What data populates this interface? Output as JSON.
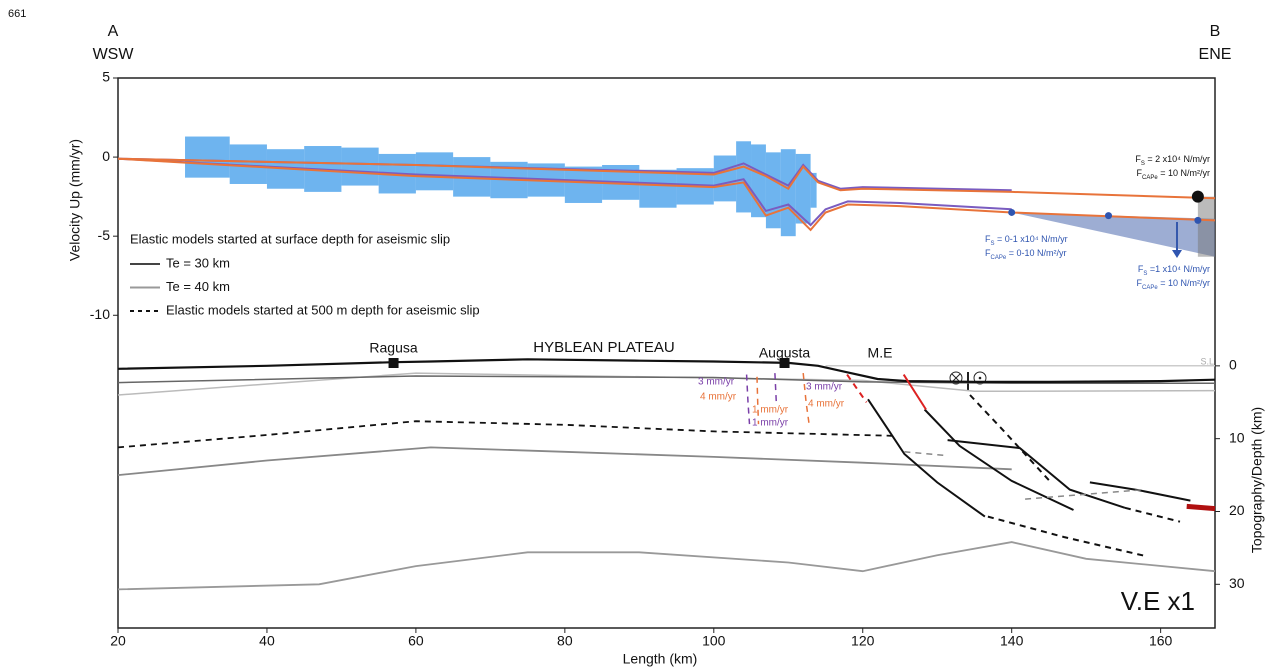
{
  "figure_number": "661",
  "profile_ends": {
    "left_letter": "A",
    "left_dir": "WSW",
    "right_letter": "B",
    "right_dir": "ENE"
  },
  "chart_data": [
    {
      "type": "line",
      "ylabel": "Velocity Up (mm/yr)",
      "xlim": [
        20,
        167.3
      ],
      "ylim": [
        -11.5,
        5
      ],
      "yticks": [
        5,
        0,
        -5,
        -10
      ],
      "band": {
        "color": "#3d9be9",
        "x": [
          29,
          35,
          40,
          45,
          50,
          55,
          60,
          65,
          70,
          75,
          80,
          85,
          90,
          95,
          100,
          103,
          105,
          107,
          109,
          111,
          113
        ],
        "high": [
          1.3,
          0.8,
          0.5,
          0.7,
          0.6,
          0.2,
          0.3,
          0.0,
          -0.3,
          -0.4,
          -0.6,
          -0.5,
          -0.8,
          -0.7,
          0.1,
          1.0,
          0.8,
          0.3,
          0.5,
          0.2,
          -1.0
        ],
        "low": [
          -1.3,
          -1.7,
          -2.0,
          -2.2,
          -1.8,
          -2.3,
          -2.1,
          -2.5,
          -2.6,
          -2.5,
          -2.9,
          -2.7,
          -3.2,
          -3.0,
          -2.8,
          -3.5,
          -3.8,
          -4.5,
          -5.0,
          -4.2,
          -3.2
        ]
      },
      "series": [
        {
          "color": "#7a5cc0",
          "x": [
            20,
            60,
            100,
            104,
            107,
            110,
            112,
            114,
            117,
            120,
            140
          ],
          "values": [
            -0.1,
            -0.5,
            -1.0,
            -0.4,
            -1.1,
            -1.8,
            -0.5,
            -1.5,
            -2.0,
            -1.9,
            -2.1
          ]
        },
        {
          "color": "#7a5cc0",
          "x": [
            20,
            60,
            100,
            104,
            107,
            110,
            113,
            115,
            118,
            125,
            140
          ],
          "values": [
            -0.1,
            -1.1,
            -1.8,
            -1.4,
            -3.4,
            -3.0,
            -4.3,
            -3.3,
            -2.8,
            -2.9,
            -3.3
          ]
        },
        {
          "color": "#e8733a",
          "x": [
            20,
            60,
            100,
            104,
            107,
            110,
            112,
            114,
            117,
            120,
            140,
            167.3
          ],
          "values": [
            -0.1,
            -0.5,
            -1.1,
            -0.6,
            -1.2,
            -2.0,
            -0.6,
            -1.6,
            -2.1,
            -2.0,
            -2.2,
            -2.6
          ]
        },
        {
          "color": "#e8733a",
          "x": [
            20,
            60,
            100,
            104,
            107,
            110,
            113,
            115,
            118,
            125,
            140,
            167.3
          ],
          "values": [
            -0.1,
            -1.2,
            -1.9,
            -1.6,
            -3.7,
            -3.2,
            -4.6,
            -3.5,
            -3.0,
            -3.1,
            -3.5,
            -4.0
          ]
        }
      ],
      "shaded": [
        {
          "color": "#3b5ba8",
          "x": [
            140,
            167.3,
            167.3
          ],
          "y": [
            -3.5,
            -3.9,
            -6.3
          ]
        },
        {
          "color": "#777777",
          "x": [
            165,
            167.3,
            167.3,
            165
          ],
          "y": [
            -2.5,
            -2.5,
            -6.3,
            -6.3
          ]
        }
      ],
      "points": [
        {
          "x": 165,
          "y": -2.5,
          "color": "#111111"
        },
        {
          "x": 140,
          "y": -3.5,
          "color": "#2f55b0"
        },
        {
          "x": 153,
          "y": -3.7,
          "color": "#2f55b0"
        },
        {
          "x": 165,
          "y": -4.0,
          "color": "#2f55b0"
        }
      ],
      "legend": {
        "title": "Elastic models started at surface depth for aseismic slip",
        "items": [
          {
            "name": "Te = 30 km",
            "color": "#444444",
            "dash": false
          },
          {
            "name": "Te = 40 km",
            "color": "#999999",
            "dash": false
          },
          {
            "name": "Elastic models started at 500 m depth for aseismic slip",
            "color": "#111111",
            "dash": true
          }
        ]
      },
      "annotations": [
        {
          "color": "#111111",
          "lines": [
            {
              "symbol": "F",
              "sub": "S",
              "text": " = 2 x10⁴ N/m/yr"
            },
            {
              "symbol": "F",
              "sub": "CAPe",
              "text": " = 10 N/m²/yr"
            }
          ]
        },
        {
          "color": "#2f55b0",
          "lines": [
            {
              "symbol": "F",
              "sub": "S",
              "text": " = 0-1 x10⁴ N/m/yr"
            },
            {
              "symbol": "F",
              "sub": "CAPe",
              "text": " = 0-10 N/m²/yr"
            }
          ]
        },
        {
          "color": "#2f55b0",
          "lines": [
            {
              "symbol": "F",
              "sub": "S",
              "text": " =1 x10⁴ N/m/yr"
            },
            {
              "symbol": "F",
              "sub": "CAPe",
              "text": " = 10 N/m²/yr"
            }
          ]
        }
      ]
    },
    {
      "type": "cross-section",
      "xlabel": "Length (km)",
      "y2label": "Topography/Depth (km)",
      "xlim": [
        20,
        167.3
      ],
      "xticks": [
        20,
        40,
        60,
        80,
        100,
        120,
        140,
        160
      ],
      "y2lim": [
        -3,
        36
      ],
      "y2ticks": [
        0,
        10,
        20,
        30
      ],
      "series": [
        {
          "color": "#cccccc",
          "width": 1.5,
          "dash": false,
          "x": [
            115,
            167.3
          ],
          "y": [
            0,
            0
          ]
        },
        {
          "color": "#bbbbbb",
          "width": 1.5,
          "dash": false,
          "x": [
            20,
            60,
            120,
            135,
            140,
            167.3
          ],
          "y": [
            4.0,
            1.0,
            2.0,
            3.5,
            3.5,
            3.4
          ]
        },
        {
          "color": "#666666",
          "width": 1.5,
          "dash": false,
          "x": [
            20,
            60,
            100,
            120,
            140,
            167.3
          ],
          "y": [
            2.3,
            1.4,
            1.6,
            2.2,
            2.4,
            2.4
          ]
        },
        {
          "color": "#111111",
          "width": 2.2,
          "dash": false,
          "x": [
            20,
            40,
            57,
            62,
            75,
            90,
            100,
            110,
            114,
            118,
            122,
            126,
            135,
            145,
            160,
            167.3
          ],
          "y": [
            0.4,
            0.0,
            -0.5,
            -0.6,
            -0.9,
            -0.7,
            -0.6,
            -0.4,
            0.0,
            0.9,
            1.8,
            2.1,
            2.2,
            2.2,
            2.1,
            1.9
          ]
        },
        {
          "color": "#111111",
          "width": 1.8,
          "dash": true,
          "x": [
            20,
            40,
            60,
            80,
            100,
            124
          ],
          "y": [
            11.2,
            9.5,
            7.6,
            8.1,
            9.0,
            9.6
          ]
        },
        {
          "color": "#888888",
          "width": 1.8,
          "dash": false,
          "x": [
            20,
            40,
            62,
            80,
            100,
            120,
            140
          ],
          "y": [
            15.0,
            13.0,
            11.2,
            11.8,
            12.5,
            13.3,
            14.2
          ]
        },
        {
          "color": "#999999",
          "width": 1.8,
          "dash": false,
          "x": [
            20,
            47,
            60,
            75,
            90,
            110,
            120,
            130,
            140,
            150,
            167.3
          ],
          "y": [
            30.7,
            30.0,
            27.5,
            25.6,
            25.6,
            27.0,
            28.2,
            26.0,
            24.2,
            26.5,
            28.2
          ]
        },
        {
          "color": "#111111",
          "width": 2,
          "dash": false,
          "x": [
            120.7,
            125.6,
            130,
            136.4
          ],
          "y": [
            4.6,
            12.1,
            16,
            20.7
          ]
        },
        {
          "color": "#111111",
          "width": 2,
          "dash": true,
          "x": [
            136.8,
            147,
            157.9
          ],
          "y": [
            20.7,
            23.5,
            26.1
          ]
        },
        {
          "color": "#111111",
          "width": 2,
          "dash": false,
          "x": [
            128.3,
            133,
            140,
            148.3
          ],
          "y": [
            6.0,
            11.0,
            15.8,
            19.8
          ]
        },
        {
          "color": "#111111",
          "width": 2,
          "dash": false,
          "x": [
            131.4,
            141.1,
            147.8,
            155.2
          ],
          "y": [
            10.2,
            11.3,
            17.0,
            19.5
          ]
        },
        {
          "color": "#111111",
          "width": 2,
          "dash": true,
          "x": [
            155.2,
            162.6
          ],
          "y": [
            19.5,
            21.4
          ]
        },
        {
          "color": "#111111",
          "width": 2,
          "dash": true,
          "x": [
            134.4,
            139,
            145
          ],
          "y": [
            4.0,
            9.0,
            15.7
          ]
        },
        {
          "color": "#111111",
          "width": 2,
          "dash": false,
          "x": [
            150.5,
            157.2,
            164
          ],
          "y": [
            16.0,
            17.1,
            18.5
          ]
        },
        {
          "color": "#888888",
          "width": 1.5,
          "dash": true,
          "x": [
            125.6,
            131
          ],
          "y": [
            11.8,
            12.3
          ]
        },
        {
          "color": "#888888",
          "width": 1.5,
          "dash": true,
          "x": [
            141.8,
            157.9
          ],
          "y": [
            18.3,
            17.0
          ]
        },
        {
          "color": "#dd2222",
          "width": 2,
          "dash": true,
          "x": [
            117.9,
            120.5
          ],
          "y": [
            1.2,
            5.0
          ]
        },
        {
          "color": "#dd2222",
          "width": 2,
          "dash": false,
          "x": [
            125.5,
            128.5
          ],
          "y": [
            1.2,
            6.0
          ]
        },
        {
          "color": "#b01010",
          "width": 5,
          "dash": false,
          "x": [
            163.5,
            167.3
          ],
          "y": [
            19.3,
            19.6
          ]
        },
        {
          "color": "#7a3fa8",
          "width": 1.5,
          "dash": true,
          "x": [
            104.4,
            104.6,
            104.8
          ],
          "y": [
            1.2,
            5.0,
            8.0
          ]
        },
        {
          "color": "#e8733a",
          "width": 1.5,
          "dash": true,
          "x": [
            105.8,
            105.9,
            106.0
          ],
          "y": [
            1.5,
            5.0,
            8.0
          ]
        },
        {
          "color": "#7a3fa8",
          "width": 1.5,
          "dash": true,
          "x": [
            108.2,
            108.4
          ],
          "y": [
            1.0,
            5.0
          ]
        },
        {
          "color": "#e8733a",
          "width": 1.5,
          "dash": true,
          "x": [
            112.0,
            112.4,
            112.8
          ],
          "y": [
            1.0,
            5.0,
            8.0
          ]
        }
      ],
      "locations": [
        {
          "label": "Ragusa",
          "x": 57
        },
        {
          "label": "Augusta",
          "x": 109.5
        }
      ],
      "labels": [
        "HYBLEAN PLATEAU",
        "M.E",
        "S.L",
        "V.E x1"
      ],
      "rate_labels": [
        {
          "label": "3 mm/yr",
          "color": "#7a3fa8"
        },
        {
          "label": "4 mm/yr",
          "color": "#e8733a"
        },
        {
          "label": "1 mm/yr",
          "color": "#e8733a"
        },
        {
          "label": "1 mm/yr",
          "color": "#7a3fa8"
        },
        {
          "label": "3 mm/yr",
          "color": "#7a3fa8"
        },
        {
          "label": "4 mm/yr",
          "color": "#e8733a"
        }
      ]
    }
  ]
}
